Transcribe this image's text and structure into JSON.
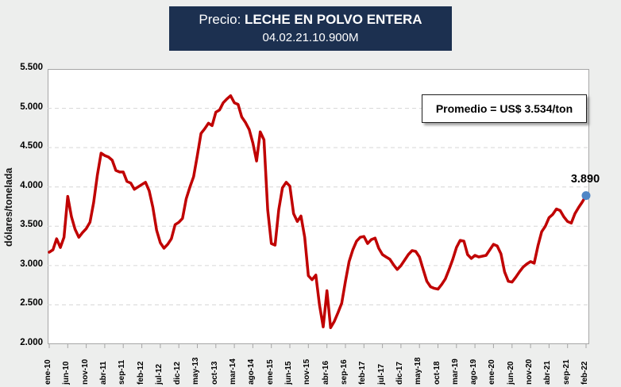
{
  "title": {
    "prefix": "Precio: ",
    "main": "LECHE EN POLVO ENTERA",
    "subtitle": "04.02.21.10.900M"
  },
  "annotation": {
    "label": "Promedio = US$ 3.534/ton"
  },
  "last_point": {
    "label": "3.890"
  },
  "colors": {
    "line": "#c00000",
    "marker": "#4e86c6",
    "title_bg": "#1c3050",
    "title_text": "#ffffff",
    "grid": "#d6d6d6",
    "plot_border": "#a6a6a6",
    "background": "#edeeed"
  },
  "y_axis": {
    "title": "dólares/tonelada",
    "tick_labels": [
      "5.500",
      "5.000",
      "4.500",
      "4.000",
      "3.500",
      "3.000",
      "2.500",
      "2.000"
    ],
    "min": 2000,
    "max": 5500
  },
  "x_axis": {
    "tick_labels": [
      "ene-10",
      "jun-10",
      "nov-10",
      "abr-11",
      "sep-11",
      "feb-12",
      "jul-12",
      "dic-12",
      "may-13",
      "oct-13",
      "mar-14",
      "ago-14",
      "ene-15",
      "jun-15",
      "nov-15",
      "abr-16",
      "sep-16",
      "feb-17",
      "jul-17",
      "dic-17",
      "may-18",
      "oct-18",
      "mar-19",
      "ago-19",
      "ene-20",
      "jun-20",
      "nov-20",
      "abr-21",
      "sep-21",
      "feb-22"
    ],
    "tick_step_months": 5
  },
  "chart_data": {
    "type": "line",
    "title": "Precio: LECHE EN POLVO ENTERA",
    "subtitle": "04.02.21.10.900M",
    "ylabel": "dólares/tonelada",
    "xlabel": "",
    "ylim": [
      2000,
      5500
    ],
    "grid": "horizontal-dashed",
    "legend": "none",
    "average_annotation": "Promedio = US$ 3.534/ton",
    "last_value_label": "3.890",
    "x": [
      "ene-10",
      "feb-10",
      "mar-10",
      "abr-10",
      "may-10",
      "jun-10",
      "jul-10",
      "ago-10",
      "sep-10",
      "oct-10",
      "nov-10",
      "dic-10",
      "ene-11",
      "feb-11",
      "mar-11",
      "abr-11",
      "may-11",
      "jun-11",
      "jul-11",
      "ago-11",
      "sep-11",
      "oct-11",
      "nov-11",
      "dic-11",
      "ene-12",
      "feb-12",
      "mar-12",
      "abr-12",
      "may-12",
      "jun-12",
      "jul-12",
      "ago-12",
      "sep-12",
      "oct-12",
      "nov-12",
      "dic-12",
      "ene-13",
      "feb-13",
      "mar-13",
      "abr-13",
      "may-13",
      "jun-13",
      "jul-13",
      "ago-13",
      "sep-13",
      "oct-13",
      "nov-13",
      "dic-13",
      "ene-14",
      "feb-14",
      "mar-14",
      "abr-14",
      "may-14",
      "jun-14",
      "jul-14",
      "ago-14",
      "sep-14",
      "oct-14",
      "nov-14",
      "dic-14",
      "ene-15",
      "feb-15",
      "mar-15",
      "abr-15",
      "may-15",
      "jun-15",
      "jul-15",
      "ago-15",
      "sep-15",
      "oct-15",
      "nov-15",
      "dic-15",
      "ene-16",
      "feb-16",
      "mar-16",
      "abr-16",
      "may-16",
      "jun-16",
      "jul-16",
      "ago-16",
      "sep-16",
      "oct-16",
      "nov-16",
      "dic-16",
      "ene-17",
      "feb-17",
      "mar-17",
      "abr-17",
      "may-17",
      "jun-17",
      "jul-17",
      "ago-17",
      "sep-17",
      "oct-17",
      "nov-17",
      "dic-17",
      "ene-18",
      "feb-18",
      "mar-18",
      "abr-18",
      "may-18",
      "jun-18",
      "jul-18",
      "ago-18",
      "sep-18",
      "oct-18",
      "nov-18",
      "dic-18",
      "ene-19",
      "feb-19",
      "mar-19",
      "abr-19",
      "may-19",
      "jun-19",
      "jul-19",
      "ago-19",
      "sep-19",
      "oct-19",
      "nov-19",
      "dic-19",
      "ene-20",
      "feb-20",
      "mar-20",
      "abr-20",
      "may-20",
      "jun-20",
      "jul-20",
      "ago-20",
      "sep-20",
      "oct-20",
      "nov-20",
      "dic-20",
      "ene-21",
      "feb-21",
      "mar-21",
      "abr-21",
      "may-21",
      "jun-21",
      "jul-21",
      "ago-21",
      "sep-21",
      "oct-21",
      "nov-21",
      "dic-21",
      "ene-22",
      "feb-22"
    ],
    "values": [
      3170,
      3200,
      3340,
      3230,
      3360,
      3880,
      3620,
      3460,
      3360,
      3420,
      3470,
      3550,
      3800,
      4150,
      4430,
      4400,
      4380,
      4340,
      4210,
      4190,
      4190,
      4070,
      4050,
      3970,
      4000,
      4030,
      4060,
      3950,
      3740,
      3450,
      3290,
      3220,
      3270,
      3340,
      3520,
      3550,
      3600,
      3850,
      4000,
      4130,
      4400,
      4680,
      4740,
      4810,
      4780,
      4950,
      4980,
      5070,
      5120,
      5160,
      5070,
      5050,
      4890,
      4820,
      4730,
      4560,
      4330,
      4700,
      4600,
      3710,
      3280,
      3260,
      3710,
      3990,
      4060,
      4010,
      3660,
      3560,
      3630,
      3360,
      2870,
      2820,
      2880,
      2500,
      2220,
      2680,
      2210,
      2290,
      2400,
      2520,
      2800,
      3050,
      3200,
      3310,
      3360,
      3370,
      3280,
      3330,
      3350,
      3220,
      3140,
      3110,
      3080,
      3010,
      2950,
      3000,
      3070,
      3140,
      3190,
      3180,
      3110,
      2950,
      2800,
      2730,
      2710,
      2700,
      2760,
      2830,
      2950,
      3080,
      3230,
      3320,
      3310,
      3140,
      3090,
      3130,
      3110,
      3120,
      3130,
      3200,
      3270,
      3250,
      3150,
      2920,
      2800,
      2790,
      2850,
      2920,
      2980,
      3020,
      3050,
      3030,
      3250,
      3430,
      3500,
      3610,
      3650,
      3720,
      3700,
      3620,
      3560,
      3540,
      3660,
      3740,
      3810,
      3890
    ]
  }
}
